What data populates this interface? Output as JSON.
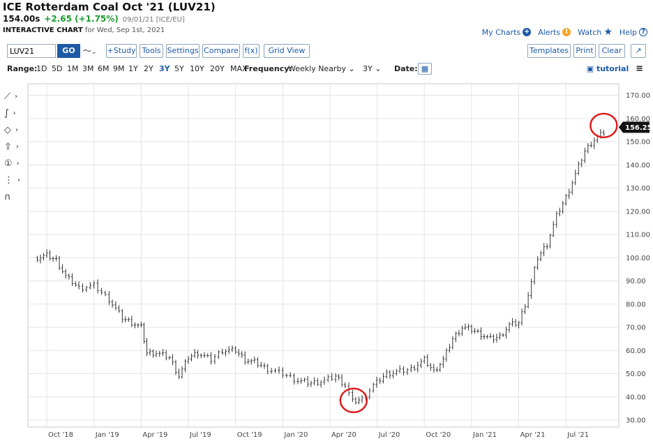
{
  "header": {
    "title": "ICE Rotterdam Coal Oct '21 (LUV21)",
    "last": "154.00s",
    "change": "+2.65 (+1.75%)",
    "meta": "09/01/21 [ICE/EU]",
    "subtitle_bold": "INTERACTIVE CHART",
    "subtitle_rest": " for Wed, Sep 1st, 2021"
  },
  "toplinks": {
    "my_charts": "My Charts",
    "alerts": "Alerts",
    "watch": "Watch",
    "help": "Help"
  },
  "toolbar": {
    "symbol_value": "LUV21",
    "go": "GO",
    "study": "+Study",
    "tools": "Tools",
    "settings": "Settings",
    "compare": "Compare",
    "fx": "f(x)",
    "grid_view": "Grid View",
    "templates": "Templates",
    "print": "Print",
    "clear": "Clear"
  },
  "rangebar": {
    "range_label": "Range:",
    "ranges": [
      "1D",
      "5D",
      "1M",
      "3M",
      "6M",
      "9M",
      "1Y",
      "2Y",
      "3Y",
      "5Y",
      "10Y",
      "20Y",
      "MAX"
    ],
    "selected": "3Y",
    "frequency_label": "Frequency:",
    "frequency_value": "Weekly Nearby",
    "period_value": "3Y",
    "date_label": "Date:",
    "tutorial": "tutorial"
  },
  "chart_data": {
    "type": "line",
    "style": "weekly OHLC bars",
    "x_tick_labels": [
      "Oct '18",
      "Jan '19",
      "Apr '19",
      "Jul '19",
      "Oct '19",
      "Jan '20",
      "Apr '20",
      "Jul '20",
      "Oct '20",
      "Jan '21",
      "Apr '21",
      "Jul '21"
    ],
    "y_ticks": [
      30,
      40,
      50,
      60,
      70,
      80,
      90,
      100,
      110,
      120,
      130,
      140,
      150,
      160,
      170
    ],
    "y_tick_labels": [
      "30.00",
      "40.00",
      "50.00",
      "60.00",
      "70.00",
      "80.00",
      "90.00",
      "100.00",
      "110.00",
      "120.00",
      "130.00",
      "140.00",
      "150.00",
      "160.00",
      "170.00"
    ],
    "ylim": [
      27,
      175
    ],
    "last_price_label": "156.25",
    "last_price": 156.25,
    "grid": true,
    "annotations": [
      {
        "type": "circle",
        "near": "Apr '20 low",
        "x": 2020.375,
        "y": 38.5
      },
      {
        "type": "circle",
        "near": "Aug '21 high",
        "x": 2021.7,
        "y": 157
      }
    ],
    "series": [
      {
        "x": [
          2018.7,
          2018.75,
          2018.8,
          2018.85,
          2018.92,
          2019.0,
          2019.08,
          2019.15,
          2019.2,
          2019.25,
          2019.28,
          2019.33,
          2019.4,
          2019.45,
          2019.5,
          2019.55,
          2019.62,
          2019.68,
          2019.75,
          2019.8,
          2019.85,
          2019.92,
          2020.0,
          2020.08,
          2020.15,
          2020.22,
          2020.28,
          2020.33,
          2020.37,
          2020.42,
          2020.48,
          2020.55,
          2020.62,
          2020.68,
          2020.75,
          2020.8,
          2020.85,
          2020.9,
          2020.95,
          2021.0,
          2021.05,
          2021.1,
          2021.15,
          2021.2,
          2021.25,
          2021.3,
          2021.35,
          2021.4,
          2021.45,
          2021.5,
          2021.55,
          2021.6,
          2021.65,
          2021.7
        ],
        "y": [
          100,
          101,
          99,
          92,
          87,
          88,
          82,
          74,
          72,
          70,
          59,
          59,
          57,
          49,
          57,
          59,
          56,
          60,
          60,
          56,
          55,
          52,
          50,
          47,
          46,
          47,
          49,
          45,
          38,
          39,
          45,
          50,
          51,
          52,
          56,
          51,
          56,
          65,
          70,
          69,
          67,
          65,
          66,
          71,
          72,
          84,
          100,
          106,
          118,
          126,
          136,
          146,
          151,
          154
        ]
      }
    ]
  }
}
